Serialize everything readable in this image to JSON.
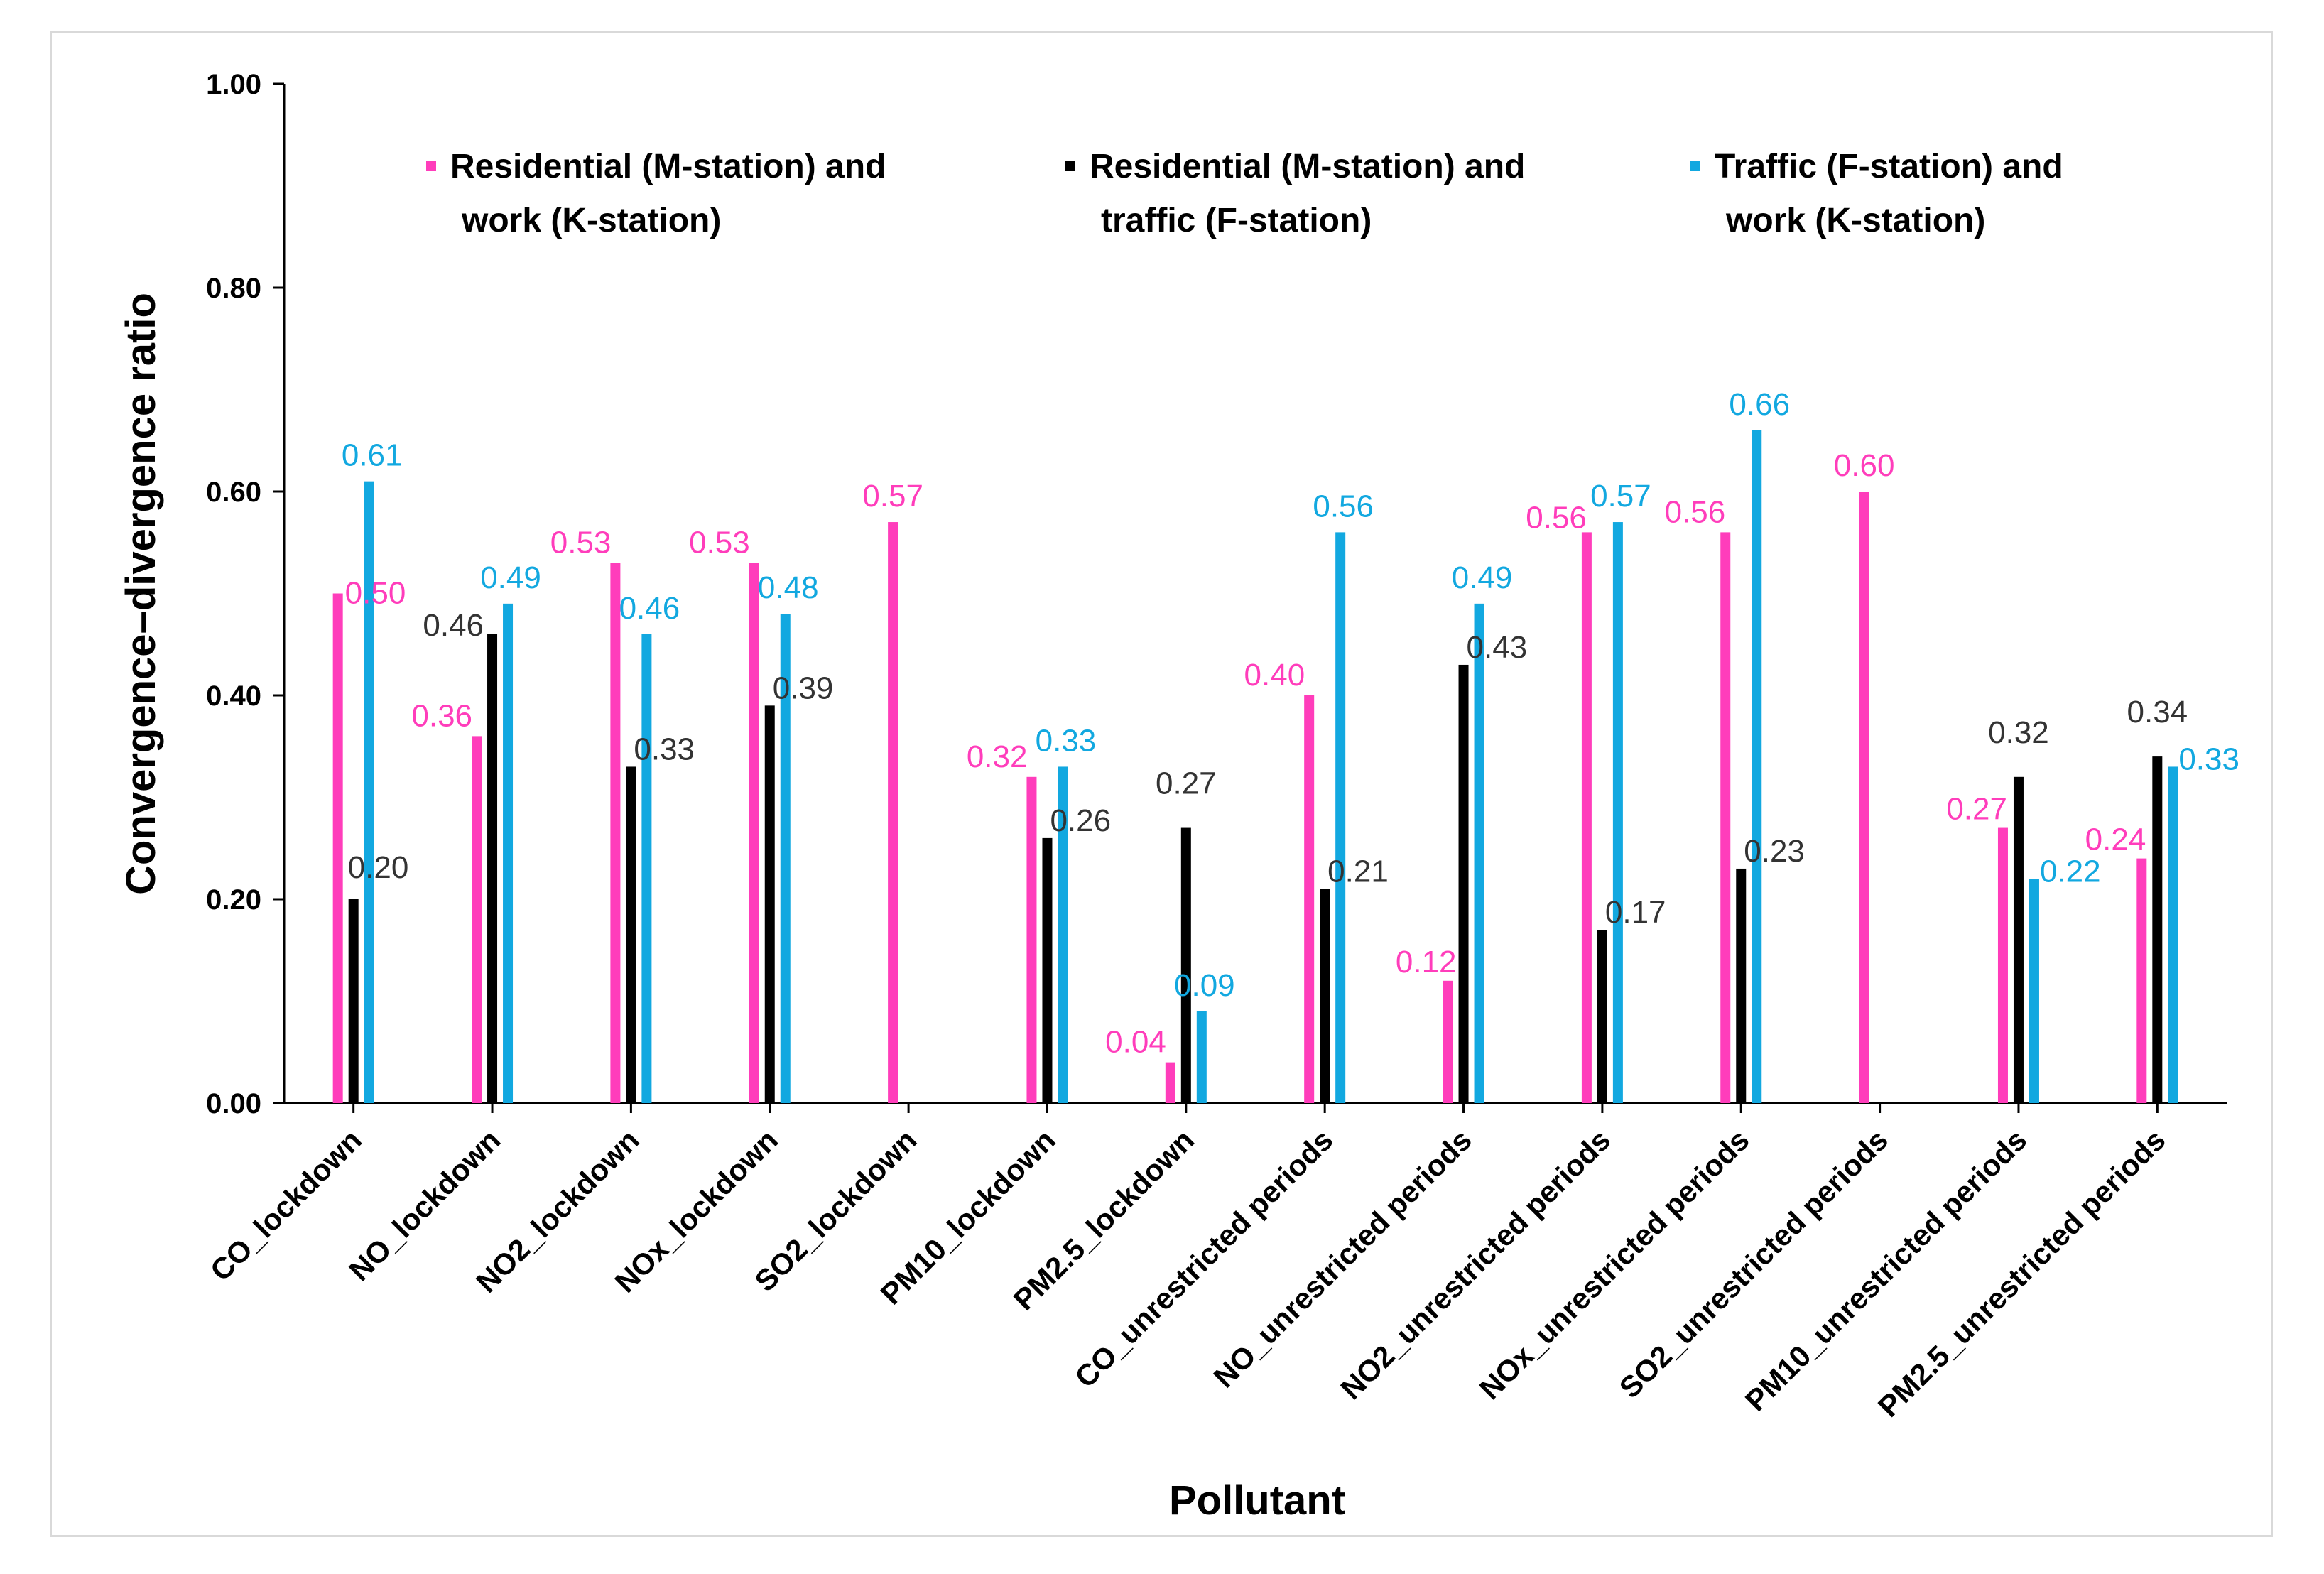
{
  "chart_data": {
    "type": "bar",
    "title": "",
    "xlabel": "Pollutant",
    "ylabel": "Convergence–divergence ratio",
    "ylim": [
      0,
      1
    ],
    "yticks": [
      "0.00",
      "0.20",
      "0.40",
      "0.60",
      "0.80",
      "1.00"
    ],
    "ytick_values": [
      0,
      0.2,
      0.4,
      0.6,
      0.8,
      1.0
    ],
    "grid": false,
    "legend_position": "top",
    "categories": [
      "CO_lockdown",
      "NO_lockdown",
      "NO2_lockdown",
      "NOx_lockdown",
      "SO2_lockdown",
      "PM10_lockdown",
      "PM2.5_lockdown",
      "CO_unrestricted periods",
      "NO_unrestricted periods",
      "NO2_unrestricted periods",
      "NOx_unrestricted periods",
      "SO2_unrestricted periods",
      "PM10_unrestricted periods",
      "PM2.5_unrestricted periods"
    ],
    "series": [
      {
        "name_line1": "Residential (M-station) and",
        "name_line2": "work (K-station)",
        "color": "#ff3dbb",
        "values": [
          0.5,
          0.36,
          0.53,
          0.53,
          0.57,
          0.32,
          0.04,
          0.4,
          0.12,
          0.56,
          0.56,
          0.6,
          0.27,
          0.24
        ],
        "labels": [
          "0.50",
          "0.36",
          "0.53",
          "0.53",
          "0.57",
          "0.32",
          "0.04",
          "0.40",
          "0.12",
          "0.56",
          "0.56",
          "0.60",
          "0.27",
          "0.24"
        ]
      },
      {
        "name_line1": "Residential (M-station) and",
        "name_line2": "traffic (F-station)",
        "color": "#000000",
        "label_color": "#333333",
        "values": [
          0.2,
          0.46,
          0.33,
          0.39,
          null,
          0.26,
          0.27,
          0.21,
          0.43,
          0.17,
          0.23,
          null,
          0.32,
          0.34
        ],
        "labels": [
          "0.20",
          "0.46",
          "0.33",
          "0.39",
          null,
          "0.26",
          "0.27",
          "0.21",
          "0.43",
          "0.17",
          "0.23",
          null,
          "0.32",
          "0.34"
        ]
      },
      {
        "name_line1": "Traffic (F-station) and",
        "name_line2": "work (K-station)",
        "color": "#12a8e0",
        "values": [
          0.61,
          0.49,
          0.46,
          0.48,
          null,
          0.33,
          0.09,
          0.56,
          0.49,
          0.57,
          0.66,
          null,
          0.22,
          0.33
        ],
        "labels": [
          "0.61",
          "0.49",
          "0.46",
          "0.48",
          null,
          "0.33",
          "0.09",
          "0.56",
          "0.49",
          "0.57",
          "0.66",
          null,
          "0.22",
          "0.33"
        ]
      }
    ]
  }
}
